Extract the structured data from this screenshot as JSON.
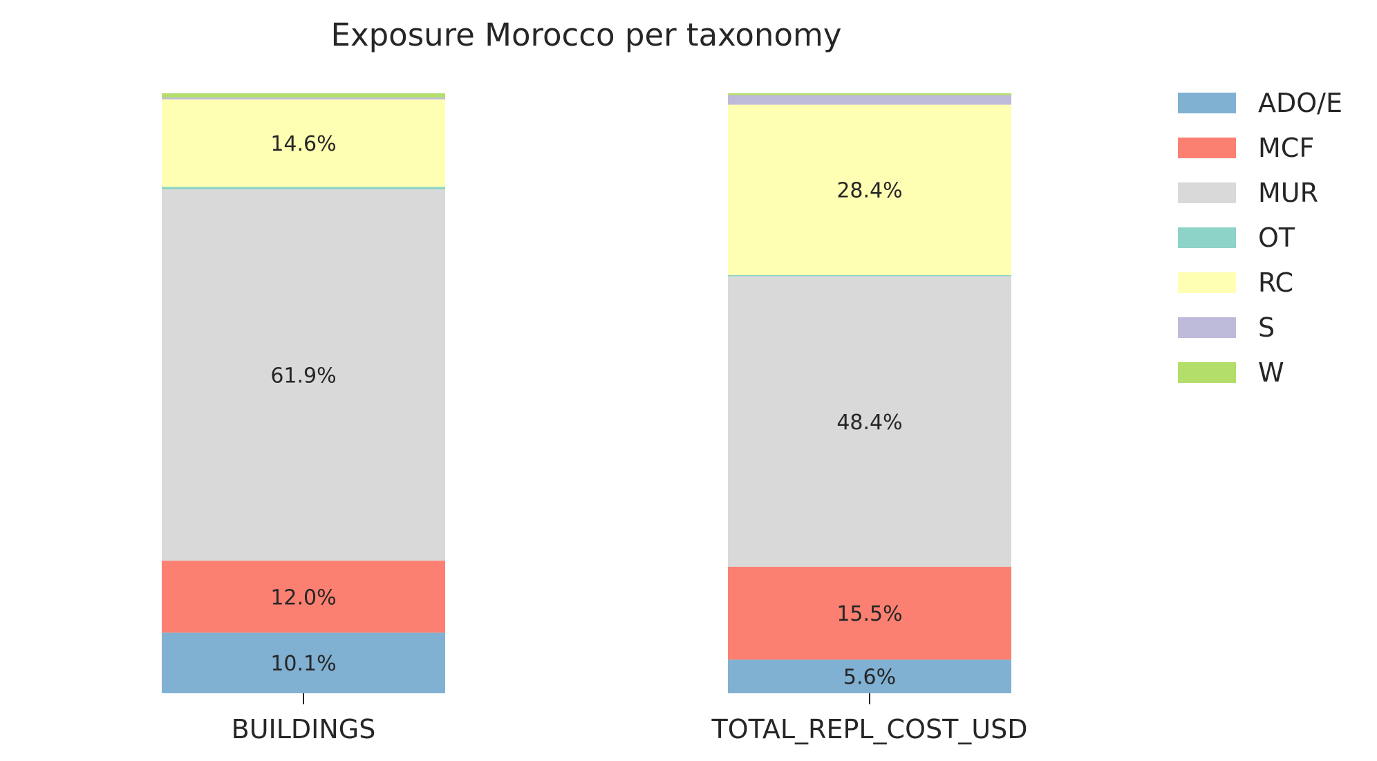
{
  "chart_data": {
    "type": "bar",
    "stacked": true,
    "normalized": true,
    "title": "Exposure Morocco per taxonomy",
    "xlabel": "",
    "ylabel": "",
    "ylim": [
      0,
      100
    ],
    "grid": false,
    "legend_position": "right",
    "categories": [
      "BUILDINGS",
      "TOTAL_REPL_COST_USD"
    ],
    "series": [
      {
        "name": "ADO/E",
        "color": "#80b1d3",
        "values": [
          10.1,
          5.6
        ]
      },
      {
        "name": "MCF",
        "color": "#fb8072",
        "values": [
          12.0,
          15.5
        ]
      },
      {
        "name": "MUR",
        "color": "#d9d9d9",
        "values": [
          61.9,
          48.4
        ]
      },
      {
        "name": "OT",
        "color": "#8dd3c7",
        "values": [
          0.4,
          0.2
        ]
      },
      {
        "name": "RC",
        "color": "#ffffb3",
        "values": [
          14.6,
          28.4
        ]
      },
      {
        "name": "S",
        "color": "#bebada",
        "values": [
          0.3,
          1.6
        ]
      },
      {
        "name": "W",
        "color": "#b3de69",
        "values": [
          0.7,
          0.3
        ]
      }
    ],
    "data_labels": [
      [
        "10.1%",
        "5.6%"
      ],
      [
        "12.0%",
        "15.5%"
      ],
      [
        "61.9%",
        "48.4%"
      ],
      [
        "",
        ""
      ],
      [
        "14.6%",
        "28.4%"
      ],
      [
        "",
        ""
      ],
      [
        "",
        ""
      ]
    ]
  }
}
